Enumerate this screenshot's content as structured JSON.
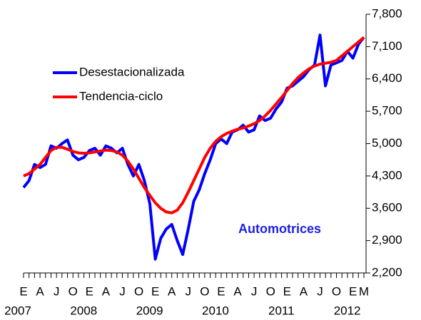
{
  "chart_data": {
    "type": "line",
    "annotation": "Automotrices",
    "categories": [
      "E",
      null,
      null,
      "A",
      null,
      null,
      "J",
      null,
      null,
      "O",
      null,
      null,
      "E",
      null,
      null,
      "A",
      null,
      null,
      "J",
      null,
      null,
      "O",
      null,
      null,
      "E",
      null,
      null,
      "A",
      null,
      null,
      "J",
      null,
      null,
      "O",
      null,
      null,
      "E",
      null,
      null,
      "A",
      null,
      null,
      "J",
      null,
      null,
      "O",
      null,
      null,
      "E",
      null,
      null,
      "A",
      null,
      null,
      "J",
      null,
      null,
      "O",
      null,
      null,
      "E",
      null,
      "M"
    ],
    "years": [
      "2007",
      "2008",
      "2009",
      "2010",
      "2011",
      "2012"
    ],
    "series": [
      {
        "name": "Desestacionalizada",
        "color": "#0000ff",
        "values": [
          4050,
          4200,
          4550,
          4480,
          4550,
          4950,
          4900,
          5000,
          5080,
          4750,
          4650,
          4700,
          4850,
          4900,
          4750,
          4950,
          4900,
          4800,
          4900,
          4550,
          4300,
          4550,
          4200,
          3700,
          2500,
          2950,
          3150,
          3250,
          2900,
          2600,
          3150,
          3750,
          4000,
          4350,
          4650,
          5000,
          5100,
          5000,
          5250,
          5300,
          5400,
          5250,
          5300,
          5600,
          5500,
          5550,
          5750,
          5900,
          6200,
          6250,
          6350,
          6450,
          6600,
          6700,
          7350,
          6250,
          6700,
          6750,
          6800,
          7000,
          6850,
          7150,
          7300
        ]
      },
      {
        "name": "Tendencia-ciclo",
        "color": "#ff0000",
        "values": [
          4300,
          4350,
          4450,
          4550,
          4700,
          4850,
          4920,
          4920,
          4880,
          4830,
          4800,
          4790,
          4800,
          4820,
          4840,
          4860,
          4850,
          4820,
          4750,
          4620,
          4450,
          4250,
          4050,
          3880,
          3720,
          3600,
          3520,
          3500,
          3560,
          3720,
          3950,
          4200,
          4450,
          4700,
          4900,
          5050,
          5150,
          5220,
          5270,
          5310,
          5340,
          5380,
          5430,
          5500,
          5600,
          5720,
          5860,
          6000,
          6150,
          6300,
          6430,
          6530,
          6620,
          6680,
          6720,
          6740,
          6760,
          6800,
          6900,
          7000,
          7100,
          7200,
          7300
        ]
      }
    ],
    "ylim": [
      2200,
      7800
    ],
    "yticks": [
      {
        "value": 2200,
        "label": "2,200"
      },
      {
        "value": 2900,
        "label": "2,900"
      },
      {
        "value": 3600,
        "label": "3,600"
      },
      {
        "value": 4300,
        "label": "4,300"
      },
      {
        "value": 5000,
        "label": "5,000"
      },
      {
        "value": 5700,
        "label": "5,700"
      },
      {
        "value": 6400,
        "label": "6,400"
      },
      {
        "value": 7100,
        "label": "7,100"
      },
      {
        "value": 7800,
        "label": "7,800"
      }
    ],
    "y_axis_side": "right",
    "grid": false
  }
}
